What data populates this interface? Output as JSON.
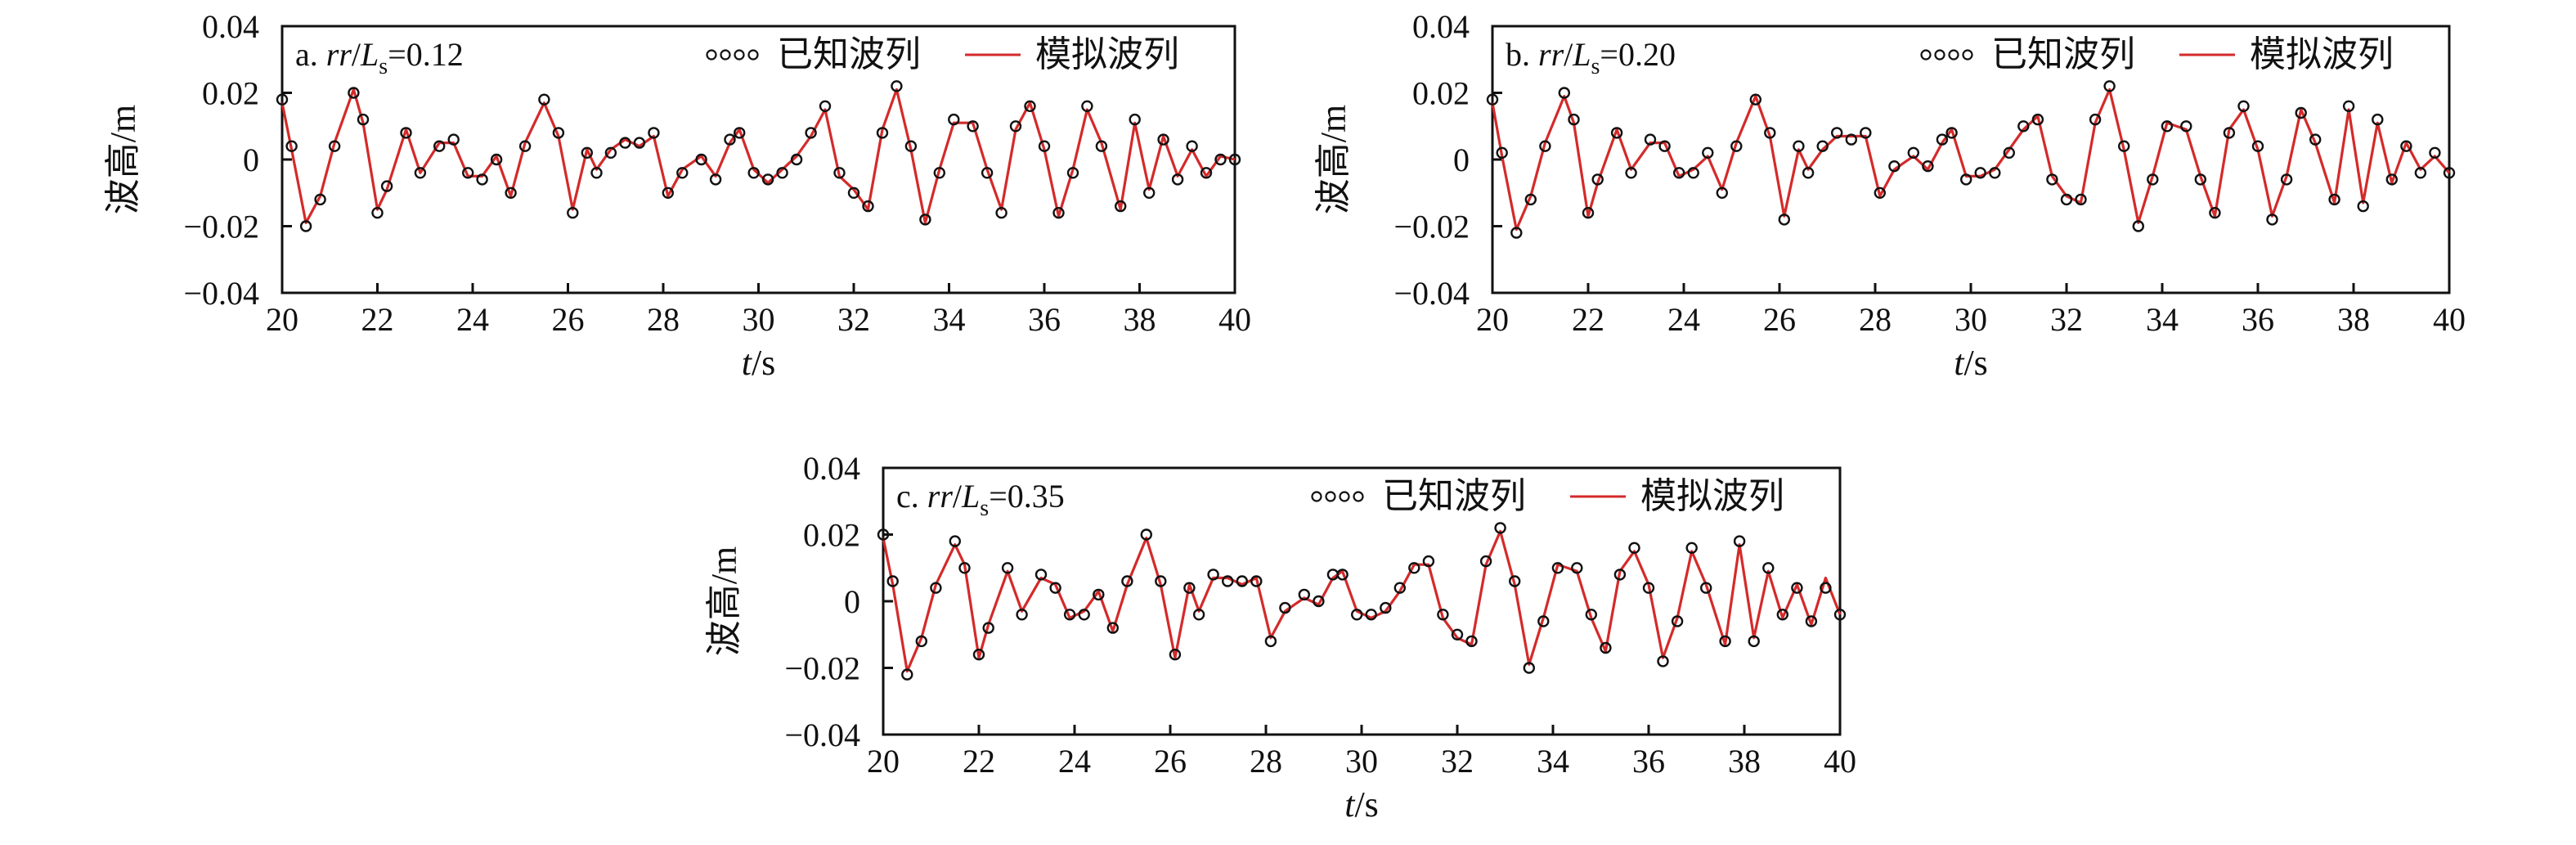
{
  "figure": {
    "series_names": [
      "已知波列",
      "模拟波列"
    ],
    "colors": {
      "known": "#111111",
      "simulated": "#d42a2a",
      "axes": "#111111"
    }
  },
  "chart_data": [
    {
      "type": "line",
      "panel": "a",
      "panel_label": {
        "prefix": "a. ",
        "var": "rr",
        "slash": "/",
        "sym": "L",
        "sub": "s",
        "eq": "=0.12"
      },
      "xlabel": {
        "var": "t",
        "unit": "/s"
      },
      "ylabel": "波高/m",
      "xlim": [
        20,
        40
      ],
      "ylim": [
        -0.04,
        0.04
      ],
      "xticks": [
        "20",
        "22",
        "24",
        "26",
        "28",
        "30",
        "32",
        "34",
        "36",
        "38",
        "40"
      ],
      "yticks": [
        "0.04",
        "0.02",
        "0",
        "−0.02",
        "−0.04"
      ],
      "legend_position": "top-right",
      "x": [
        20.0,
        20.2,
        20.5,
        20.8,
        21.1,
        21.5,
        21.7,
        22.0,
        22.2,
        22.6,
        22.9,
        23.3,
        23.6,
        23.9,
        24.2,
        24.5,
        24.8,
        25.1,
        25.5,
        25.8,
        26.1,
        26.4,
        26.6,
        26.9,
        27.2,
        27.5,
        27.8,
        28.1,
        28.4,
        28.8,
        29.1,
        29.4,
        29.6,
        29.9,
        30.2,
        30.5,
        30.8,
        31.1,
        31.4,
        31.7,
        32.0,
        32.3,
        32.6,
        32.9,
        33.2,
        33.5,
        33.8,
        34.1,
        34.5,
        34.8,
        35.1,
        35.4,
        35.7,
        36.0,
        36.3,
        36.6,
        36.9,
        37.2,
        37.6,
        37.9,
        38.2,
        38.5,
        38.8,
        39.1,
        39.4,
        39.7,
        40.0
      ],
      "series": [
        {
          "name": "已知波列",
          "style": "markers",
          "values": [
            0.018,
            0.004,
            -0.02,
            -0.012,
            0.004,
            0.02,
            0.012,
            -0.016,
            -0.008,
            0.008,
            -0.004,
            0.004,
            0.006,
            -0.004,
            -0.006,
            0.0,
            -0.01,
            0.004,
            0.018,
            0.008,
            -0.016,
            0.002,
            -0.004,
            0.002,
            0.005,
            0.005,
            0.008,
            -0.01,
            -0.004,
            0.0,
            -0.006,
            0.006,
            0.008,
            -0.004,
            -0.006,
            -0.004,
            0.0,
            0.008,
            0.016,
            -0.004,
            -0.01,
            -0.014,
            0.008,
            0.022,
            0.004,
            -0.018,
            -0.004,
            0.012,
            0.01,
            -0.004,
            -0.016,
            0.01,
            0.016,
            0.004,
            -0.016,
            -0.004,
            0.016,
            0.004,
            -0.014,
            0.012,
            -0.01,
            0.006,
            -0.006,
            0.004,
            -0.004,
            0.0,
            0.0
          ]
        },
        {
          "name": "模拟波列",
          "style": "line",
          "values": [
            0.017,
            0.003,
            -0.019,
            -0.011,
            0.005,
            0.021,
            0.011,
            -0.015,
            -0.009,
            0.009,
            -0.004,
            0.005,
            0.005,
            -0.005,
            -0.005,
            0.001,
            -0.011,
            0.005,
            0.017,
            0.007,
            -0.015,
            0.003,
            -0.003,
            0.003,
            0.006,
            0.004,
            0.007,
            -0.011,
            -0.003,
            0.001,
            -0.005,
            0.005,
            0.009,
            -0.003,
            -0.007,
            -0.003,
            0.001,
            0.007,
            0.015,
            -0.005,
            -0.009,
            -0.015,
            0.009,
            0.021,
            0.003,
            -0.019,
            -0.003,
            0.011,
            0.011,
            -0.003,
            -0.015,
            0.009,
            0.017,
            0.003,
            -0.017,
            -0.003,
            0.015,
            0.005,
            -0.015,
            0.011,
            -0.009,
            0.007,
            -0.005,
            0.003,
            -0.005,
            0.001,
            0.0
          ]
        }
      ]
    },
    {
      "type": "line",
      "panel": "b",
      "panel_label": {
        "prefix": "b. ",
        "var": "rr",
        "slash": "/",
        "sym": "L",
        "sub": "s",
        "eq": "=0.20"
      },
      "xlabel": {
        "var": "t",
        "unit": "/s"
      },
      "ylabel": "波高/m",
      "xlim": [
        20,
        40
      ],
      "ylim": [
        -0.04,
        0.04
      ],
      "xticks": [
        "20",
        "22",
        "24",
        "26",
        "28",
        "30",
        "32",
        "34",
        "36",
        "38",
        "40"
      ],
      "yticks": [
        "0.04",
        "0.02",
        "0",
        "−0.02",
        "−0.04"
      ],
      "legend_position": "top-right",
      "x": [
        20.0,
        20.2,
        20.5,
        20.8,
        21.1,
        21.5,
        21.7,
        22.0,
        22.2,
        22.6,
        22.9,
        23.3,
        23.6,
        23.9,
        24.2,
        24.5,
        24.8,
        25.1,
        25.5,
        25.8,
        26.1,
        26.4,
        26.6,
        26.9,
        27.2,
        27.5,
        27.8,
        28.1,
        28.4,
        28.8,
        29.1,
        29.4,
        29.6,
        29.9,
        30.2,
        30.5,
        30.8,
        31.1,
        31.4,
        31.7,
        32.0,
        32.3,
        32.6,
        32.9,
        33.2,
        33.5,
        33.8,
        34.1,
        34.5,
        34.8,
        35.1,
        35.4,
        35.7,
        36.0,
        36.3,
        36.6,
        36.9,
        37.2,
        37.6,
        37.9,
        38.2,
        38.5,
        38.8,
        39.1,
        39.4,
        39.7,
        40.0
      ],
      "series": [
        {
          "name": "已知波列",
          "style": "markers",
          "values": [
            0.018,
            0.002,
            -0.022,
            -0.012,
            0.004,
            0.02,
            0.012,
            -0.016,
            -0.006,
            0.008,
            -0.004,
            0.006,
            0.004,
            -0.004,
            -0.004,
            0.002,
            -0.01,
            0.004,
            0.018,
            0.008,
            -0.018,
            0.004,
            -0.004,
            0.004,
            0.008,
            0.006,
            0.008,
            -0.01,
            -0.002,
            0.002,
            -0.002,
            0.006,
            0.008,
            -0.006,
            -0.004,
            -0.004,
            0.002,
            0.01,
            0.012,
            -0.006,
            -0.012,
            -0.012,
            0.012,
            0.022,
            0.004,
            -0.02,
            -0.006,
            0.01,
            0.01,
            -0.006,
            -0.016,
            0.008,
            0.016,
            0.004,
            -0.018,
            -0.006,
            0.014,
            0.006,
            -0.012,
            0.016,
            -0.014,
            0.012,
            -0.006,
            0.004,
            -0.004,
            0.002,
            -0.004
          ]
        },
        {
          "name": "模拟波列",
          "style": "line",
          "values": [
            0.017,
            0.001,
            -0.021,
            -0.011,
            0.005,
            0.019,
            0.011,
            -0.017,
            -0.007,
            0.009,
            -0.003,
            0.005,
            0.005,
            -0.005,
            -0.003,
            0.001,
            -0.009,
            0.005,
            0.019,
            0.007,
            -0.017,
            0.003,
            -0.003,
            0.003,
            0.007,
            0.007,
            0.007,
            -0.011,
            -0.003,
            0.001,
            -0.003,
            0.005,
            0.009,
            -0.005,
            -0.005,
            -0.003,
            0.003,
            0.009,
            0.013,
            -0.005,
            -0.011,
            -0.013,
            0.011,
            0.021,
            0.003,
            -0.019,
            -0.005,
            0.011,
            0.009,
            -0.005,
            -0.017,
            0.009,
            0.015,
            0.003,
            -0.017,
            -0.005,
            0.015,
            0.005,
            -0.013,
            0.015,
            -0.013,
            0.011,
            -0.007,
            0.005,
            -0.003,
            0.001,
            -0.004
          ]
        }
      ]
    },
    {
      "type": "line",
      "panel": "c",
      "panel_label": {
        "prefix": "c. ",
        "var": "rr",
        "slash": "/",
        "sym": "L",
        "sub": "s",
        "eq": "=0.35"
      },
      "xlabel": {
        "var": "t",
        "unit": "/s"
      },
      "ylabel": "波高/m",
      "xlim": [
        20,
        40
      ],
      "ylim": [
        -0.04,
        0.04
      ],
      "xticks": [
        "20",
        "22",
        "24",
        "26",
        "28",
        "30",
        "32",
        "34",
        "36",
        "38",
        "40"
      ],
      "yticks": [
        "0.04",
        "0.02",
        "0",
        "−0.02",
        "−0.04"
      ],
      "legend_position": "top-right",
      "x": [
        20.0,
        20.2,
        20.5,
        20.8,
        21.1,
        21.5,
        21.7,
        22.0,
        22.2,
        22.6,
        22.9,
        23.3,
        23.6,
        23.9,
        24.2,
        24.5,
        24.8,
        25.1,
        25.5,
        25.8,
        26.1,
        26.4,
        26.6,
        26.9,
        27.2,
        27.5,
        27.8,
        28.1,
        28.4,
        28.8,
        29.1,
        29.4,
        29.6,
        29.9,
        30.2,
        30.5,
        30.8,
        31.1,
        31.4,
        31.7,
        32.0,
        32.3,
        32.6,
        32.9,
        33.2,
        33.5,
        33.8,
        34.1,
        34.5,
        34.8,
        35.1,
        35.4,
        35.7,
        36.0,
        36.3,
        36.6,
        36.9,
        37.2,
        37.6,
        37.9,
        38.2,
        38.5,
        38.8,
        39.1,
        39.4,
        39.7,
        40.0
      ],
      "series": [
        {
          "name": "已知波列",
          "style": "markers",
          "values": [
            0.02,
            0.006,
            -0.022,
            -0.012,
            0.004,
            0.018,
            0.01,
            -0.016,
            -0.008,
            0.01,
            -0.004,
            0.008,
            0.004,
            -0.004,
            -0.004,
            0.002,
            -0.008,
            0.006,
            0.02,
            0.006,
            -0.016,
            0.004,
            -0.004,
            0.008,
            0.006,
            0.006,
            0.006,
            -0.012,
            -0.002,
            0.002,
            0.0,
            0.008,
            0.008,
            -0.004,
            -0.004,
            -0.002,
            0.004,
            0.01,
            0.012,
            -0.004,
            -0.01,
            -0.012,
            0.012,
            0.022,
            0.006,
            -0.02,
            -0.006,
            0.01,
            0.01,
            -0.004,
            -0.014,
            0.008,
            0.016,
            0.004,
            -0.018,
            -0.006,
            0.016,
            0.004,
            -0.012,
            0.018,
            -0.012,
            0.01,
            -0.004,
            0.004,
            -0.006,
            0.004,
            -0.004
          ]
        },
        {
          "name": "模拟波列",
          "style": "line",
          "values": [
            0.019,
            0.005,
            -0.021,
            -0.011,
            0.005,
            0.017,
            0.011,
            -0.017,
            -0.007,
            0.009,
            -0.003,
            0.007,
            0.005,
            -0.005,
            -0.003,
            0.003,
            -0.009,
            0.005,
            0.019,
            0.005,
            -0.017,
            0.005,
            -0.003,
            0.007,
            0.007,
            0.005,
            0.007,
            -0.011,
            -0.003,
            0.001,
            -0.001,
            0.007,
            0.009,
            -0.003,
            -0.005,
            -0.003,
            0.003,
            0.011,
            0.011,
            -0.005,
            -0.011,
            -0.013,
            0.011,
            0.021,
            0.005,
            -0.019,
            -0.005,
            0.011,
            0.009,
            -0.005,
            -0.015,
            0.009,
            0.015,
            0.005,
            -0.017,
            -0.005,
            0.015,
            0.005,
            -0.013,
            0.017,
            -0.011,
            0.009,
            -0.005,
            0.005,
            -0.007,
            0.007,
            -0.004
          ]
        }
      ]
    }
  ]
}
